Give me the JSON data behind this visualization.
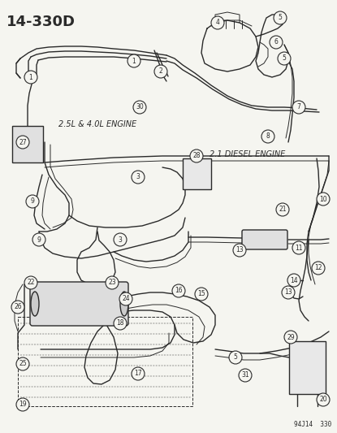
{
  "title": "14-330D",
  "bg_color": "#f0f0f0",
  "line_color": "#2a2a2a",
  "text_color": "#1a1a1a",
  "title_fontsize": 13,
  "label_fontsize": 7,
  "footnote": "94J14  330",
  "engine_label_1": "2.5L & 4.0L ENGINE",
  "engine_label_2": "2.1 DIESEL ENGINE",
  "fig_width": 4.15,
  "fig_height": 5.33,
  "dpi": 100
}
